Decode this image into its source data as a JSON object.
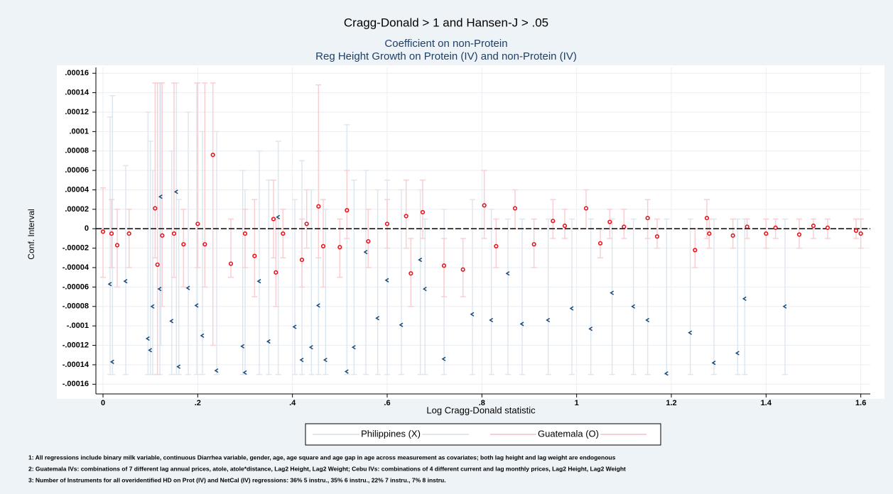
{
  "chart_data": {
    "type": "errorscatter",
    "title": "Cragg-Donald > 1 and Hansen-J > .05",
    "subtitle": [
      "Coefficient on non-Protein",
      "Reg Height Growth on Protein (IV) and non-Protein (IV)"
    ],
    "x_label": "Log Cragg-Donald statistic",
    "y_label": "Conf. Interval",
    "xlim": [
      -0.015,
      1.62
    ],
    "ylim": [
      -0.00017,
      0.000166
    ],
    "xticks": [
      0,
      {
        "value": 0.2,
        "label": ".2"
      },
      {
        "value": 0.4,
        "label": ".4"
      },
      {
        "value": 0.6,
        "label": ".6"
      },
      {
        "value": 0.8,
        "label": ".8"
      },
      1,
      1.2,
      1.4,
      1.6
    ],
    "yticks": [
      {
        "value": -0.00016,
        "label": "-.00016"
      },
      {
        "value": -0.00014,
        "label": "-.00014"
      },
      {
        "value": -0.00012,
        "label": "-.00012"
      },
      {
        "value": -0.0001,
        "label": "-.0001"
      },
      {
        "value": -8e-05,
        "label": "-.00008"
      },
      {
        "value": -6e-05,
        "label": "-.00006"
      },
      {
        "value": -4e-05,
        "label": "-.00004"
      },
      {
        "value": -2e-05,
        "label": "-.00002"
      },
      0,
      {
        "value": 2e-05,
        "label": ".00002"
      },
      {
        "value": 4e-05,
        "label": ".00004"
      },
      {
        "value": 6e-05,
        "label": ".00006"
      },
      {
        "value": 8e-05,
        "label": ".00008"
      },
      {
        "value": 0.0001,
        "label": ".0001"
      },
      {
        "value": 0.00012,
        "label": ".00012"
      },
      {
        "value": 0.00014,
        "label": ".00014"
      },
      {
        "value": 0.00016,
        "label": ".00016"
      }
    ],
    "grid": true,
    "legend": "bottom",
    "series": [
      {
        "name": "Philippines (X)",
        "color": "#1a4a7a",
        "bar_color": "#dfe7ee",
        "x": [
          0.015,
          0.02,
          0.048,
          0.095,
          0.1,
          0.105,
          0.12,
          0.122,
          0.145,
          0.155,
          0.16,
          0.18,
          0.198,
          0.21,
          0.24,
          0.295,
          0.3,
          0.33,
          0.37,
          0.35,
          0.405,
          0.42,
          0.44,
          0.455,
          0.47,
          0.515,
          0.53,
          0.555,
          0.58,
          0.6,
          0.63,
          0.67,
          0.68,
          0.72,
          0.78,
          0.82,
          0.855,
          0.885,
          0.94,
          0.99,
          1.03,
          1.075,
          1.12,
          1.15,
          1.19,
          1.24,
          1.29,
          1.34,
          1.355,
          1.44
        ],
        "values": [
          -5.7e-05,
          -0.000137,
          -5.4e-05,
          -0.000113,
          -0.000125,
          -8e-05,
          -6.2e-05,
          3.3e-05,
          -9.5e-05,
          3.8e-05,
          -0.000142,
          -6.1e-05,
          -7.9e-05,
          -0.00011,
          -0.000146,
          -0.000121,
          -0.000148,
          -5.4e-05,
          1.2e-05,
          -0.000116,
          -0.000101,
          -0.000135,
          -0.000122,
          -7.9e-05,
          -0.000135,
          -0.000147,
          -0.000122,
          -2.4e-05,
          -9.2e-05,
          -5.3e-05,
          -9.9e-05,
          -3.2e-05,
          -6.2e-05,
          -0.000134,
          -8.8e-05,
          -9.4e-05,
          -4.6e-05,
          -9.8e-05,
          -9.4e-05,
          -8.2e-05,
          -0.000103,
          -6.6e-05,
          -8e-05,
          -9.4e-05,
          -0.000149,
          -0.000107,
          -0.000138,
          -0.000128,
          -7.2e-05,
          -8e-05
        ],
        "lower": [
          -0.00015,
          -0.00015,
          -0.00015,
          -0.00015,
          -0.00015,
          -0.00015,
          -0.00015,
          -0.00012,
          -0.00015,
          -0.00015,
          -0.00015,
          -0.00015,
          -0.00015,
          -0.00015,
          -0.00015,
          -0.00015,
          -0.00015,
          -0.00015,
          -0.00015,
          -0.00015,
          -0.00015,
          -0.00015,
          -0.00015,
          -0.00015,
          -0.00015,
          -0.00015,
          -0.00015,
          -0.00015,
          -0.00015,
          -0.00015,
          -0.00015,
          -0.00015,
          -0.00015,
          -0.00015,
          -0.00015,
          -0.00015,
          -0.00015,
          -0.00015,
          -0.00015,
          -0.00015,
          -0.00015,
          -0.00015,
          -0.00015,
          -0.00015,
          -0.00015,
          -0.00015,
          -0.00015,
          -0.00015,
          -0.00015,
          -0.00015
        ],
        "upper": [
          0.000115,
          0.000137,
          6.5e-05,
          0.00012,
          9e-05,
          6e-05,
          0.00015,
          0.00015,
          8e-05,
          0.00015,
          3e-05,
          0.00012,
          0.00015,
          0.0001,
          0.0001,
          6e-05,
          4e-05,
          8e-05,
          9e-05,
          5e-05,
          3e-05,
          7e-05,
          4e-05,
          8e-05,
          2e-05,
          0.000107,
          5e-05,
          6e-05,
          4e-05,
          5e-05,
          4e-05,
          4e-05,
          1e-05,
          2e-05,
          3e-05,
          2e-05,
          1e-05,
          1e-05,
          1e-05,
          1e-05,
          1e-05,
          1e-05,
          1e-05,
          1e-05,
          1e-05,
          1e-05,
          1e-05,
          1e-05,
          1e-05,
          1e-05
        ]
      },
      {
        "name": "Guatemala (O)",
        "color": "#e8141e",
        "bar_color": "#f8cfd2",
        "x": [
          0.0,
          0.018,
          0.03,
          0.055,
          0.11,
          0.115,
          0.125,
          0.15,
          0.17,
          0.2,
          0.215,
          0.232,
          0.27,
          0.3,
          0.32,
          0.36,
          0.365,
          0.38,
          0.42,
          0.43,
          0.455,
          0.465,
          0.5,
          0.515,
          0.56,
          0.6,
          0.64,
          0.65,
          0.675,
          0.72,
          0.76,
          0.805,
          0.83,
          0.87,
          0.91,
          0.95,
          0.975,
          1.02,
          1.05,
          1.07,
          1.1,
          1.15,
          1.17,
          1.25,
          1.275,
          1.28,
          1.33,
          1.36,
          1.4,
          1.42,
          1.47,
          1.5,
          1.53,
          1.59,
          1.6
        ],
        "values": [
          -3e-06,
          -5e-06,
          -1.7e-05,
          -5e-06,
          2.1e-05,
          -3.7e-05,
          -7e-06,
          -5e-06,
          -1.6e-05,
          5e-06,
          -1.6e-05,
          7.6e-05,
          -3.6e-05,
          -5e-06,
          -2.8e-05,
          1e-05,
          -4.5e-05,
          -5e-06,
          -3.2e-05,
          5e-06,
          2.3e-05,
          -1.8e-05,
          -1.9e-05,
          1.9e-05,
          -1.3e-05,
          5e-06,
          1.3e-05,
          -4.6e-05,
          1.7e-05,
          -3.8e-05,
          -4.2e-05,
          2.4e-05,
          -1.8e-05,
          2.1e-05,
          -1.6e-05,
          8e-06,
          3e-06,
          2.1e-05,
          -1.5e-05,
          7e-06,
          2e-06,
          1.1e-05,
          -8e-06,
          -2.2e-05,
          1.1e-05,
          -5e-06,
          -7e-06,
          2e-06,
          -5e-06,
          1e-06,
          -6e-06,
          3e-06,
          1e-06,
          -2e-06,
          -5e-06
        ],
        "lower": [
          -5e-05,
          -4e-05,
          -6e-05,
          -4e-05,
          -3e-05,
          -0.00015,
          -8e-05,
          -5e-05,
          -6e-05,
          -4e-05,
          -6e-05,
          -0.00012,
          -5e-05,
          -4e-05,
          -7e-05,
          -3e-05,
          -8e-05,
          -3e-05,
          -6e-05,
          -2e-05,
          -3e-05,
          -6e-05,
          -5e-05,
          -1e-05,
          -4e-05,
          -2e-05,
          -2e-05,
          -8e-05,
          -1e-05,
          -7e-05,
          -7e-05,
          -1e-05,
          -4e-05,
          0,
          -4e-05,
          -1e-05,
          -1e-05,
          0,
          -3e-05,
          -1e-05,
          -1e-05,
          -1e-05,
          -2e-05,
          -4e-05,
          -1e-05,
          -2e-05,
          -2e-05,
          -1e-05,
          -2e-05,
          -1e-05,
          -2e-05,
          -1e-05,
          -1e-05,
          -1e-05,
          -2e-05
        ],
        "upper": [
          4.2e-05,
          3e-05,
          2e-05,
          2e-05,
          0.00015,
          0.00015,
          0.00015,
          0.00015,
          2e-05,
          0.00015,
          0.00015,
          0.00015,
          1e-05,
          2e-05,
          3e-05,
          5e-05,
          1e-05,
          2e-05,
          1e-05,
          4e-05,
          0.000148,
          3e-05,
          1e-05,
          6e-05,
          2e-05,
          3e-05,
          5e-05,
          -1e-05,
          5e-05,
          -1e-05,
          -1e-05,
          6e-05,
          1e-05,
          4e-05,
          1e-05,
          3e-05,
          2e-05,
          4e-05,
          0,
          2e-05,
          2e-05,
          3e-05,
          1e-05,
          0,
          3e-05,
          1e-05,
          1e-05,
          1e-05,
          1e-05,
          1e-05,
          1e-05,
          1e-05,
          1e-05,
          1e-05,
          1e-05
        ]
      }
    ],
    "notes": [
      "1: All regressions include binary milk variable, continuous Diarrhea variable, gender, age, age square and age gap in age across measurement as covariates; both lag height and lag weight are endogenous",
      "2: Guatemala IVs: combinations of 7 different lag annual prices, atole, atole*distance, Lag2 Height, Lag2 Weight; Cebu IVs: combinations of 4 different current and lag monthly prices, Lag2 Height, Lag2 Weight",
      "3: Number of Instruments for all overidentified HD on Prot (IV) and NetCal (IV) regressions: 36% 5 instru., 35% 6 instru., 22% 7 instru., 7% 8 instru."
    ]
  }
}
